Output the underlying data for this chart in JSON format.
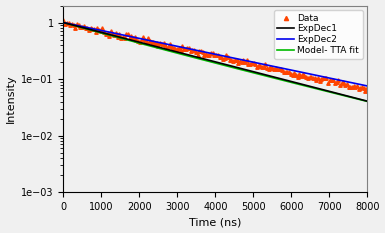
{
  "title": "",
  "xlabel": "Time (ns)",
  "ylabel": "Intensity",
  "xlim": [
    0,
    8000
  ],
  "ylim_log": [
    0.001,
    2.0
  ],
  "x_ticks": [
    0,
    1000,
    2000,
    3000,
    4000,
    5000,
    6000,
    7000,
    8000
  ],
  "legend_entries": [
    "Data",
    "ExpDec1",
    "ExpDec2",
    "Model- TTA fit"
  ],
  "data_color": "#FF4400",
  "expdec1_color": "#000000",
  "expdec2_color": "#0000EE",
  "model_color": "#00BB00",
  "background_color": "#f0f0f0",
  "data_marker": "^",
  "data_markersize": 2.5,
  "line_width": 1.2,
  "tau_data": 2950,
  "tau_expdec1": 2500,
  "tau_expdec2": 3100,
  "tau_model": 3050,
  "noise_seed": 7,
  "n_data_points": 180,
  "noise_sigma": 0.06
}
